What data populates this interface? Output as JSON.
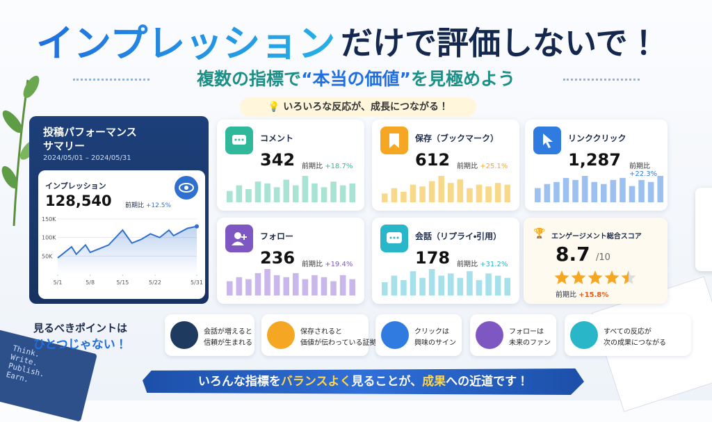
{
  "header": {
    "title_blue": "インプレッション",
    "title_dark": "だけで評価しないで！",
    "subtitle_pre": "複数の指標で",
    "subtitle_highlight": "“本当の価値”",
    "subtitle_post": "を見極めよう",
    "tagline": "いろいろな反応が、成長につながる！"
  },
  "summary": {
    "title_lines": [
      "投稿パフォーマンス",
      "サマリー"
    ],
    "period": "2024/05/01 – 2024/05/31",
    "label": "インプレッション",
    "value": "128,540",
    "change_label": "前期比",
    "change": "+12.5%"
  },
  "chart_data": {
    "type": "line",
    "color": "#2f6fd0",
    "x": [
      1,
      2,
      4,
      5,
      7,
      8,
      10,
      12,
      15,
      17,
      19,
      21,
      23,
      25,
      26,
      29,
      31
    ],
    "values": [
      45000,
      55000,
      75000,
      55000,
      80000,
      60000,
      70000,
      80000,
      120000,
      85000,
      95000,
      110000,
      100000,
      120000,
      105000,
      125000,
      130000
    ],
    "xlim": [
      1,
      31
    ],
    "xticks": [
      {
        "value": 1,
        "label": "5/1"
      },
      {
        "value": 8,
        "label": "5/8"
      },
      {
        "value": 15,
        "label": "5/15"
      },
      {
        "value": 22,
        "label": "5/22"
      },
      {
        "value": 31,
        "label": "5/31"
      }
    ],
    "ylim": [
      0,
      150000
    ],
    "yticks": [
      {
        "value": 50000,
        "label": "50K"
      },
      {
        "value": 100000,
        "label": "100K"
      },
      {
        "value": 150000,
        "label": "150K"
      }
    ],
    "grid": true
  },
  "metrics": [
    {
      "label": "コメント",
      "value": "342",
      "change_label": "前期比",
      "change": "+18.7%",
      "color": "#2fb89a",
      "bar_color": "#a8e3d3",
      "bars": [
        30,
        45,
        35,
        55,
        50,
        40,
        60,
        45,
        70,
        50,
        40,
        55,
        45,
        50
      ]
    },
    {
      "label": "保存（ブックマーク）",
      "value": "612",
      "change_label": "前期比",
      "change": "+25.1%",
      "color": "#f5a623",
      "bar_color": "#f8d98a",
      "bars": [
        25,
        40,
        30,
        50,
        45,
        60,
        75,
        55,
        65,
        40,
        50,
        45,
        55,
        50
      ]
    },
    {
      "label": "リンククリック",
      "value": "1,287",
      "change_label": "前期比",
      "change": "+22.3%",
      "color": "#2f7be0",
      "bar_color": "#9cc0f0",
      "bars": [
        35,
        45,
        50,
        60,
        55,
        65,
        50,
        45,
        55,
        60,
        40,
        55,
        50,
        65
      ]
    },
    {
      "label": "フォロー",
      "value": "236",
      "change_label": "前期比",
      "change": "+19.4%",
      "color": "#7e57c2",
      "bar_color": "#c9b6ea",
      "bars": [
        35,
        45,
        40,
        55,
        65,
        50,
        45,
        55,
        40,
        50,
        45,
        35,
        50,
        40
      ]
    },
    {
      "label": "会話（リプライ・引用）",
      "value": "178",
      "change_label": "前期比",
      "change": "+31.2%",
      "color": "#29b6c8",
      "bar_color": "#a6e0ea",
      "bars": [
        30,
        45,
        35,
        55,
        40,
        60,
        45,
        50,
        40,
        55,
        35,
        50,
        45,
        40
      ]
    }
  ],
  "score": {
    "label": "エンゲージメント総合スコア",
    "value": "8.7",
    "out_of": "/10",
    "stars": 4.5,
    "change_label": "前期比",
    "change": "+15.8%"
  },
  "points": {
    "heading_lines": [
      "見るべきポイントは",
      "ひとつじゃない！"
    ],
    "items": [
      {
        "lines": [
          "会話が増えると",
          "信頼が生まれる"
        ],
        "color": "#1e3a5f"
      },
      {
        "lines": [
          "保存されると",
          "価値が伝わっている証拠"
        ],
        "color": "#f5a623"
      },
      {
        "lines": [
          "クリックは",
          "興味のサイン"
        ],
        "color": "#2f7be0"
      },
      {
        "lines": [
          "フォローは",
          "未来のファン"
        ],
        "color": "#7e57c2"
      },
      {
        "lines": [
          "すべての反応が",
          "次の成果につながる"
        ],
        "color": "#29b6c8"
      }
    ]
  },
  "footer": {
    "parts": [
      "いろんな",
      "指標",
      "を",
      "バランスよく",
      "見ることが、",
      "成果",
      "への",
      "近道",
      "です！"
    ]
  },
  "book_text": [
    "Think.",
    "Write.",
    "Publish.",
    "Earn."
  ]
}
